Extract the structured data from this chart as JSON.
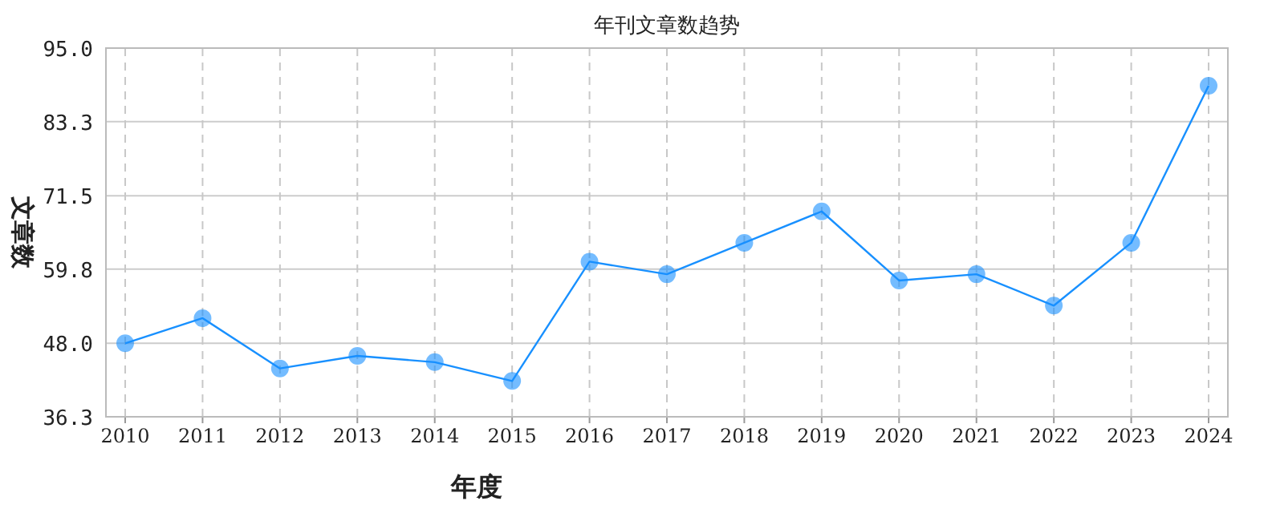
{
  "chart_data": {
    "type": "line",
    "title": "年刊文章数趋势",
    "xlabel": "年度",
    "ylabel": "文章数",
    "categories": [
      "2010",
      "2011",
      "2012",
      "2013",
      "2014",
      "2015",
      "2016",
      "2017",
      "2018",
      "2019",
      "2020",
      "2021",
      "2022",
      "2023",
      "2024"
    ],
    "series": [
      {
        "color": "#1890ff",
        "values": [
          48,
          52,
          44,
          46,
          45,
          42,
          61,
          59,
          64,
          69,
          58,
          59,
          54,
          64,
          89
        ]
      }
    ],
    "ylim": [
      36.3,
      95
    ],
    "yticks": [
      36.3,
      {
        "value": 48,
        "label": "48.0"
      },
      59.8,
      71.5,
      83.3,
      {
        "value": 95,
        "label": "95.0"
      }
    ],
    "grid": true,
    "marker": "circle",
    "line_style": "solid"
  }
}
